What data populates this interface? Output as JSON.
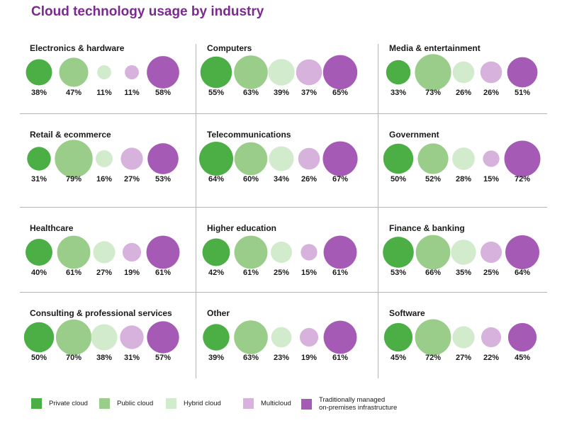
{
  "title": "Cloud technology usage by industry",
  "chart_data": {
    "type": "bubble-grid",
    "title": "Cloud technology usage by industry",
    "value_format": "{v}%",
    "series": [
      {
        "name": "Private cloud",
        "color": "#4caf46"
      },
      {
        "name": "Public cloud",
        "color": "#99cd89"
      },
      {
        "name": "Hybrid cloud",
        "color": "#d3ebcd"
      },
      {
        "name": "Multicloud",
        "color": "#d6b2dd"
      },
      {
        "name": "Traditionally managed\non-premises infrastructure",
        "color": "#a55bb5"
      }
    ],
    "industries": [
      {
        "name": "Electronics & hardware",
        "values": [
          38,
          47,
          11,
          11,
          58
        ]
      },
      {
        "name": "Computers",
        "values": [
          55,
          63,
          39,
          37,
          65
        ]
      },
      {
        "name": "Media & entertainment",
        "values": [
          33,
          73,
          26,
          26,
          51
        ]
      },
      {
        "name": "Retail & ecommerce",
        "values": [
          31,
          79,
          16,
          27,
          53
        ]
      },
      {
        "name": "Telecommunications",
        "values": [
          64,
          60,
          34,
          26,
          67
        ]
      },
      {
        "name": "Government",
        "values": [
          50,
          52,
          28,
          15,
          72
        ]
      },
      {
        "name": "Healthcare",
        "values": [
          40,
          61,
          27,
          19,
          61
        ]
      },
      {
        "name": "Higher education",
        "values": [
          42,
          61,
          25,
          15,
          61
        ]
      },
      {
        "name": "Finance & banking",
        "values": [
          53,
          66,
          35,
          25,
          64
        ]
      },
      {
        "name": "Consulting & professional services",
        "values": [
          50,
          70,
          38,
          31,
          57
        ]
      },
      {
        "name": "Other",
        "values": [
          39,
          63,
          23,
          19,
          61
        ]
      },
      {
        "name": "Software",
        "values": [
          45,
          72,
          27,
          22,
          45
        ]
      }
    ]
  }
}
